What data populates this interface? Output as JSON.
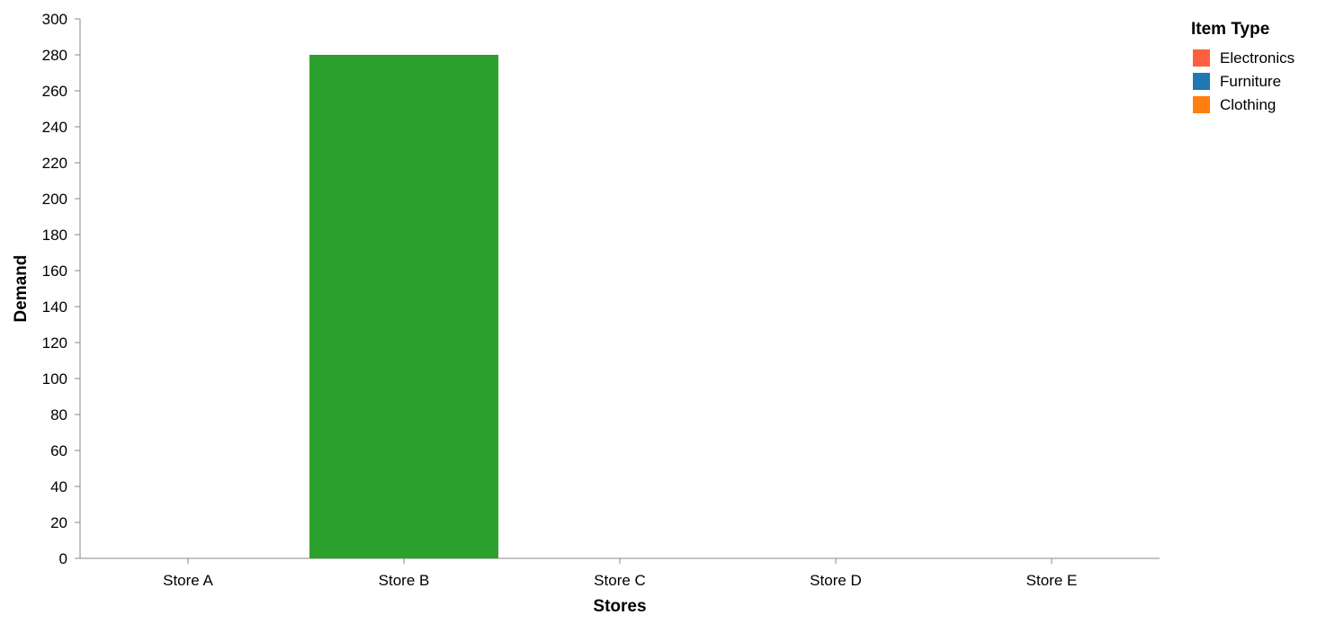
{
  "chart_data": {
    "type": "bar",
    "xlabel": "Stores",
    "ylabel": "Demand",
    "categories": [
      "Store A",
      "Store B",
      "Store C",
      "Store D",
      "Store E"
    ],
    "values": [
      null,
      280,
      null,
      null,
      null
    ],
    "bar_color": "#2ca02c",
    "ylim": [
      0,
      300
    ],
    "yticks": [
      0,
      20,
      40,
      60,
      80,
      100,
      120,
      140,
      160,
      180,
      200,
      220,
      240,
      260,
      280,
      300
    ],
    "grid": false,
    "legend": {
      "title": "Item Type",
      "position": "top-right",
      "entries": [
        {
          "label": "Electronics",
          "color": "#ff5f3f"
        },
        {
          "label": "Furniture",
          "color": "#1f77b4"
        },
        {
          "label": "Clothing",
          "color": "#ff7f0e"
        }
      ]
    }
  }
}
